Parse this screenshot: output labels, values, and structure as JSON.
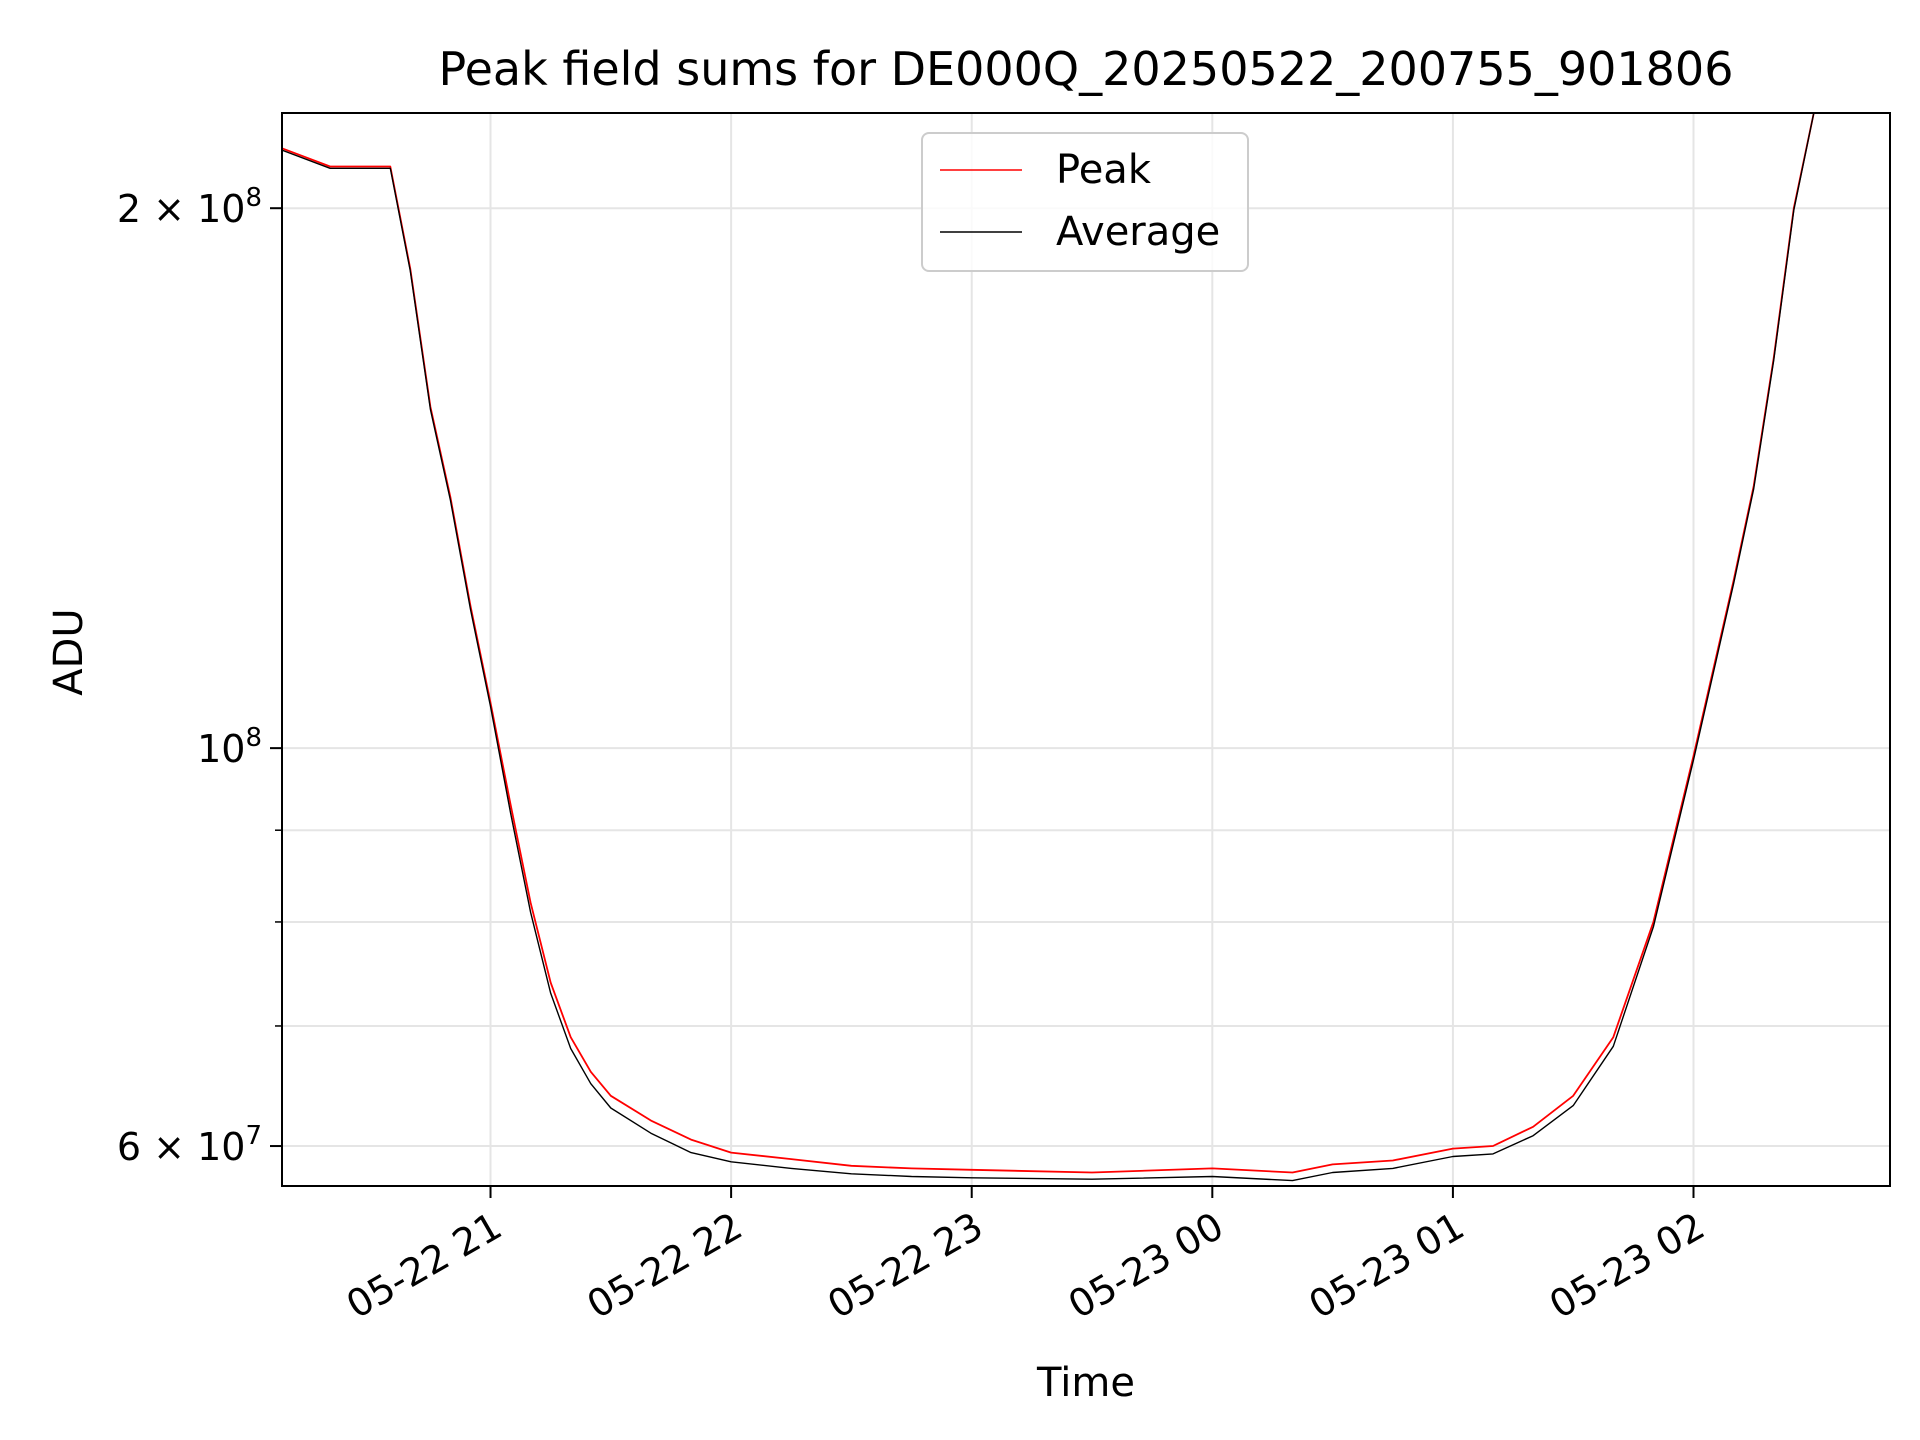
{
  "chart_data": {
    "type": "line",
    "title": "Peak field sums for DE000Q_20250522_200755_901806",
    "xlabel": "Time",
    "ylabel": "ADU",
    "y_scale": "log",
    "grid": true,
    "legend_placement": "upper center",
    "xlim": [
      "2025-05-22 20:08",
      "2025-05-23 02:49"
    ],
    "ylim": [
      57000000,
      226000000
    ],
    "x_ticks": [
      {
        "value": "2025-05-22 21:00",
        "label": "05-22 21"
      },
      {
        "value": "2025-05-22 22:00",
        "label": "05-22 22"
      },
      {
        "value": "2025-05-22 23:00",
        "label": "05-22 23"
      },
      {
        "value": "2025-05-23 00:00",
        "label": "05-23 00"
      },
      {
        "value": "2025-05-23 01:00",
        "label": "05-23 01"
      },
      {
        "value": "2025-05-23 02:00",
        "label": "05-23 02"
      }
    ],
    "y_ticks": [
      {
        "value": 200000000,
        "label_base": "2 × 10",
        "label_exp": "8"
      },
      {
        "value": 100000000,
        "label_base": "10",
        "label_exp": "8"
      },
      {
        "value": 60000000,
        "label_base": "6 × 10",
        "label_exp": "7"
      }
    ],
    "y_minor_ticks": [
      70000000,
      80000000,
      90000000
    ],
    "series": [
      {
        "name": "Peak",
        "color": "#ff0000",
        "x": [
          "2025-05-22 20:08",
          "2025-05-22 20:20",
          "2025-05-22 20:35",
          "2025-05-22 20:40",
          "2025-05-22 20:45",
          "2025-05-22 20:50",
          "2025-05-22 20:55",
          "2025-05-22 21:00",
          "2025-05-22 21:05",
          "2025-05-22 21:10",
          "2025-05-22 21:15",
          "2025-05-22 21:20",
          "2025-05-22 21:25",
          "2025-05-22 21:30",
          "2025-05-22 21:40",
          "2025-05-22 21:50",
          "2025-05-22 22:00",
          "2025-05-22 22:15",
          "2025-05-22 22:30",
          "2025-05-22 22:45",
          "2025-05-22 23:00",
          "2025-05-22 23:30",
          "2025-05-23 00:00",
          "2025-05-23 00:20",
          "2025-05-23 00:30",
          "2025-05-23 00:45",
          "2025-05-23 01:00",
          "2025-05-23 01:10",
          "2025-05-23 01:20",
          "2025-05-23 01:30",
          "2025-05-23 01:40",
          "2025-05-23 01:50",
          "2025-05-23 02:00",
          "2025-05-23 02:10",
          "2025-05-23 02:15",
          "2025-05-23 02:20",
          "2025-05-23 02:25",
          "2025-05-23 02:30",
          "2025-05-23 02:49"
        ],
        "values": [
          216000000,
          211000000,
          211000000,
          185000000,
          155000000,
          138000000,
          120000000,
          106000000,
          93000000,
          82000000,
          74000000,
          69000000,
          66000000,
          64000000,
          62000000,
          60500000,
          59500000,
          59000000,
          58500000,
          58300000,
          58200000,
          58000000,
          58300000,
          58000000,
          58600000,
          58900000,
          59800000,
          60000000,
          61500000,
          64000000,
          69000000,
          80000000,
          99000000,
          124000000,
          140000000,
          165000000,
          200000000,
          226000000,
          226000000
        ]
      },
      {
        "name": "Average",
        "color": "#000000",
        "x": [
          "2025-05-22 20:08",
          "2025-05-22 20:20",
          "2025-05-22 20:35",
          "2025-05-22 20:40",
          "2025-05-22 20:45",
          "2025-05-22 20:50",
          "2025-05-22 20:55",
          "2025-05-22 21:00",
          "2025-05-22 21:05",
          "2025-05-22 21:10",
          "2025-05-22 21:15",
          "2025-05-22 21:20",
          "2025-05-22 21:25",
          "2025-05-22 21:30",
          "2025-05-22 21:40",
          "2025-05-22 21:50",
          "2025-05-22 22:00",
          "2025-05-22 22:15",
          "2025-05-22 22:30",
          "2025-05-22 22:45",
          "2025-05-22 23:00",
          "2025-05-22 23:30",
          "2025-05-23 00:00",
          "2025-05-23 00:20",
          "2025-05-23 00:30",
          "2025-05-23 00:45",
          "2025-05-23 01:00",
          "2025-05-23 01:10",
          "2025-05-23 01:20",
          "2025-05-23 01:30",
          "2025-05-23 01:40",
          "2025-05-23 01:50",
          "2025-05-23 02:00",
          "2025-05-23 02:10",
          "2025-05-23 02:15",
          "2025-05-23 02:20",
          "2025-05-23 02:25",
          "2025-05-23 02:30",
          "2025-05-23 02:49"
        ],
        "values": [
          215500000,
          210500000,
          210500000,
          184500000,
          154500000,
          137500000,
          119500000,
          105500000,
          92000000,
          81000000,
          73000000,
          68000000,
          65000000,
          63000000,
          61000000,
          59500000,
          58800000,
          58300000,
          57900000,
          57700000,
          57600000,
          57500000,
          57700000,
          57400000,
          58000000,
          58300000,
          59200000,
          59400000,
          60800000,
          63200000,
          68200000,
          79500000,
          98500000,
          123500000,
          139500000,
          164500000,
          199500000,
          226000000,
          226000000
        ]
      }
    ]
  }
}
